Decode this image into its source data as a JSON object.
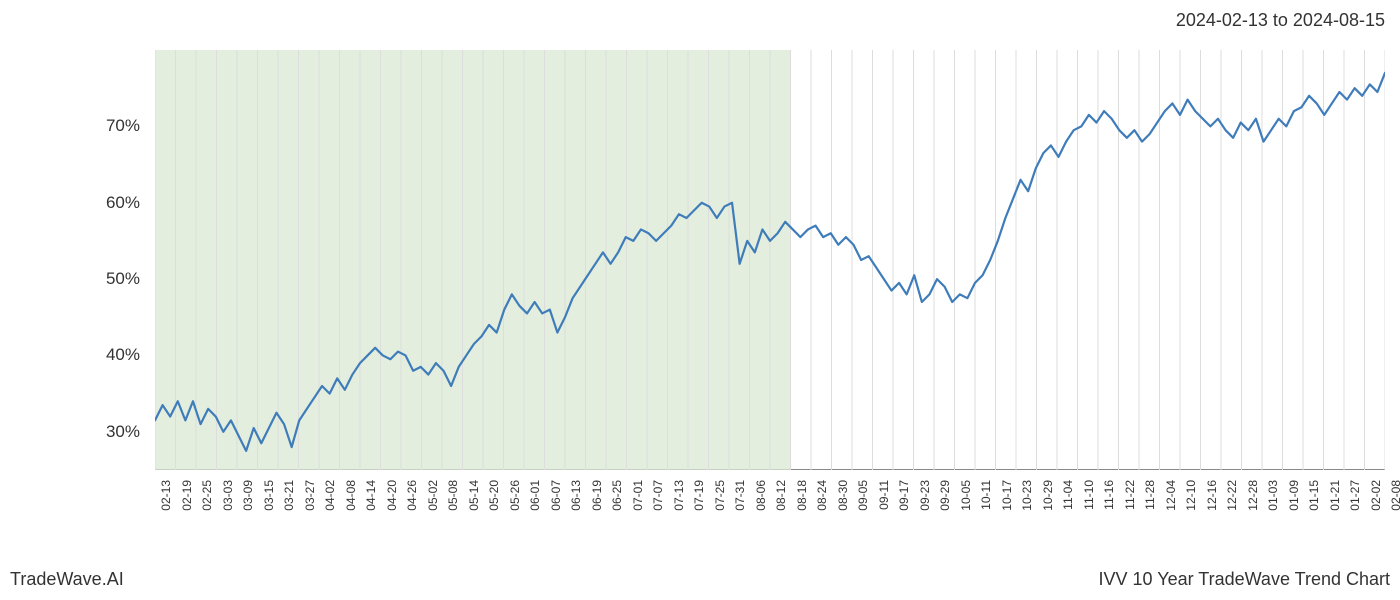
{
  "header": {
    "date_range": "2024-02-13 to 2024-08-15"
  },
  "footer": {
    "left": "TradeWave.AI",
    "right": "IVV 10 Year TradeWave Trend Chart"
  },
  "chart": {
    "type": "line",
    "ylim": [
      25,
      80
    ],
    "xlim": [
      0,
      63
    ],
    "y_ticks": [
      30,
      40,
      50,
      60,
      70
    ],
    "y_tick_labels": [
      "30%",
      "40%",
      "50%",
      "60%",
      "70%"
    ],
    "y_label_fontsize": 17,
    "x_labels": [
      "02-13",
      "02-19",
      "02-25",
      "03-03",
      "03-09",
      "03-15",
      "03-21",
      "03-27",
      "04-02",
      "04-08",
      "04-14",
      "04-20",
      "04-26",
      "05-02",
      "05-08",
      "05-14",
      "05-20",
      "05-26",
      "06-01",
      "06-07",
      "06-13",
      "06-19",
      "06-25",
      "07-01",
      "07-07",
      "07-13",
      "07-19",
      "07-25",
      "07-31",
      "08-06",
      "08-12",
      "08-18",
      "08-24",
      "08-30",
      "09-05",
      "09-11",
      "09-17",
      "09-23",
      "09-29",
      "10-05",
      "10-11",
      "10-17",
      "10-23",
      "10-29",
      "11-04",
      "11-10",
      "11-16",
      "11-22",
      "11-28",
      "12-04",
      "12-10",
      "12-16",
      "12-22",
      "12-28",
      "01-03",
      "01-09",
      "01-15",
      "01-21",
      "01-27",
      "02-02",
      "02-08"
    ],
    "x_label_fontsize": 12,
    "highlight_region": {
      "start_index": 0,
      "end_index": 31,
      "fill": "#d9e8d4",
      "opacity": 0.75
    },
    "grid_vertical": {
      "color": "#dddddd",
      "width": 1
    },
    "axis_color": "#888888",
    "line": {
      "color": "#3f7cba",
      "width": 2.2
    },
    "background_color": "#ffffff",
    "data": [
      31.5,
      33.5,
      32.0,
      34.0,
      31.5,
      34.0,
      31.0,
      33.0,
      32.0,
      30.0,
      31.5,
      29.5,
      27.5,
      30.5,
      28.5,
      30.5,
      32.5,
      31.0,
      28.0,
      31.5,
      33.0,
      34.5,
      36.0,
      35.0,
      37.0,
      35.5,
      37.5,
      39.0,
      40.0,
      41.0,
      40.0,
      39.5,
      40.5,
      40.0,
      38.0,
      38.5,
      37.5,
      39.0,
      38.0,
      36.0,
      38.5,
      40.0,
      41.5,
      42.5,
      44.0,
      43.0,
      46.0,
      48.0,
      46.5,
      45.5,
      47.0,
      45.5,
      46.0,
      43.0,
      45.0,
      47.5,
      49.0,
      50.5,
      52.0,
      53.5,
      52.0,
      53.5,
      55.5,
      55.0,
      56.5,
      56.0,
      55.0,
      56.0,
      57.0,
      58.5,
      58.0,
      59.0,
      60.0,
      59.5,
      58.0,
      59.5,
      60.0,
      52.0,
      55.0,
      53.5,
      56.5,
      55.0,
      56.0,
      57.5,
      56.5,
      55.5,
      56.5,
      57.0,
      55.5,
      56.0,
      54.5,
      55.5,
      54.5,
      52.5,
      53.0,
      51.5,
      50.0,
      48.5,
      49.5,
      48.0,
      50.5,
      47.0,
      48.0,
      50.0,
      49.0,
      47.0,
      48.0,
      47.5,
      49.5,
      50.5,
      52.5,
      55.0,
      58.0,
      60.5,
      63.0,
      61.5,
      64.5,
      66.5,
      67.5,
      66.0,
      68.0,
      69.5,
      70.0,
      71.5,
      70.5,
      72.0,
      71.0,
      69.5,
      68.5,
      69.5,
      68.0,
      69.0,
      70.5,
      72.0,
      73.0,
      71.5,
      73.5,
      72.0,
      71.0,
      70.0,
      71.0,
      69.5,
      68.5,
      70.5,
      69.5,
      71.0,
      68.0,
      69.5,
      71.0,
      70.0,
      72.0,
      72.5,
      74.0,
      73.0,
      71.5,
      73.0,
      74.5,
      73.5,
      75.0,
      74.0,
      75.5,
      74.5,
      77.0
    ]
  }
}
